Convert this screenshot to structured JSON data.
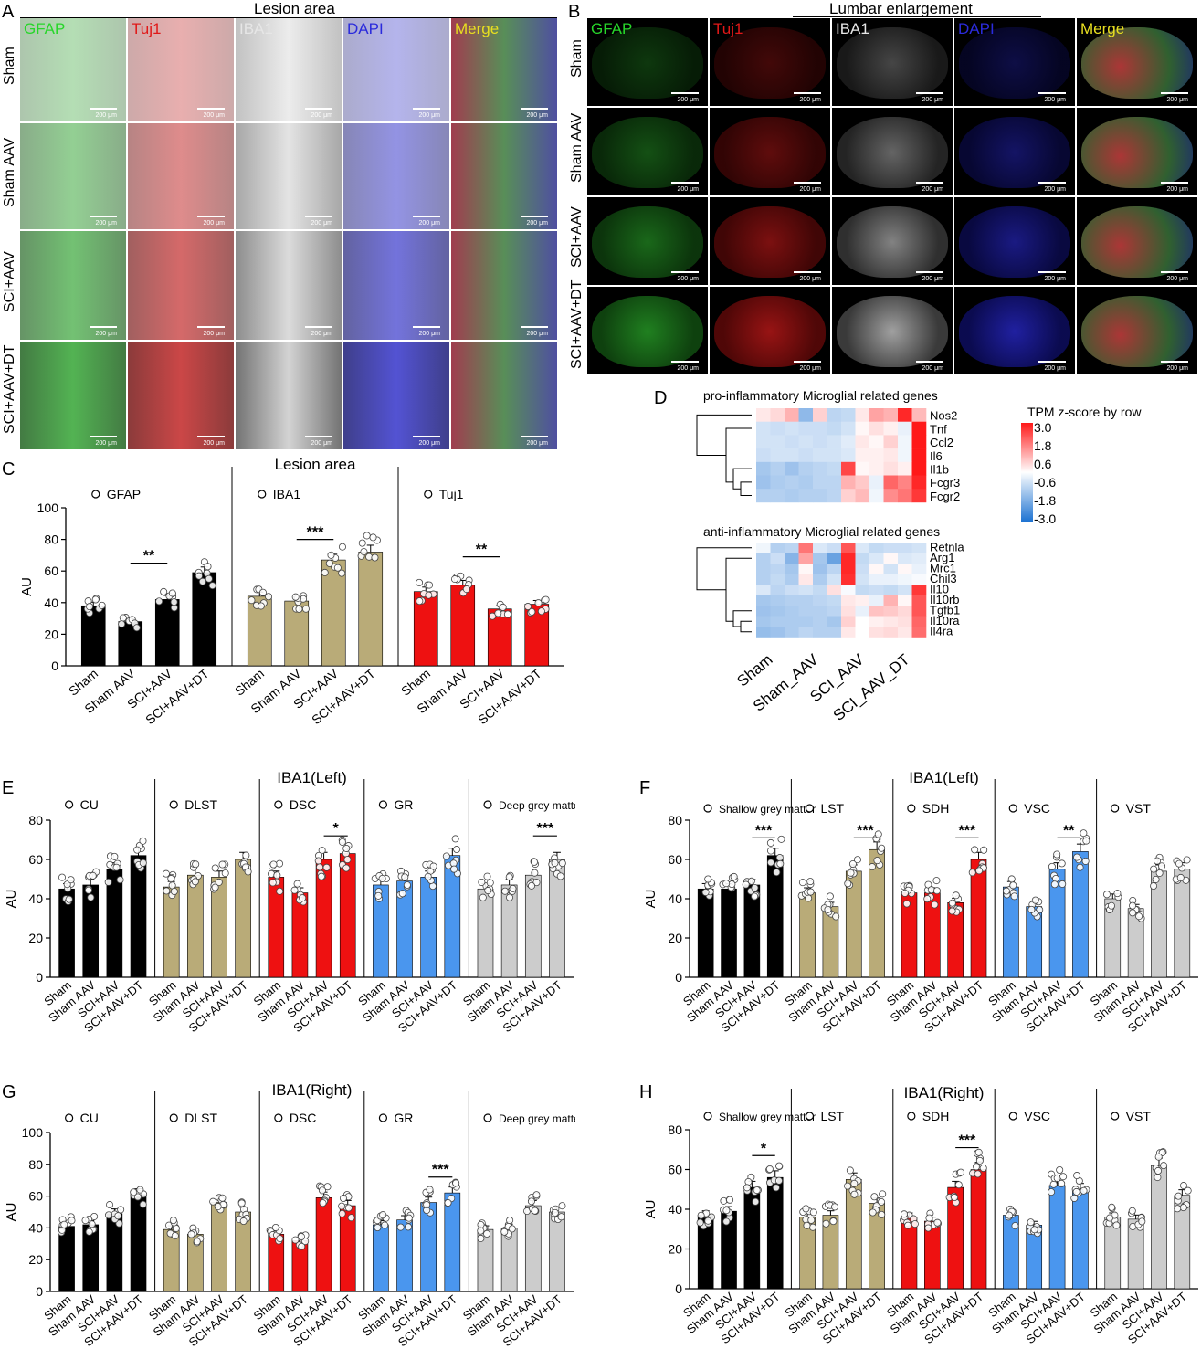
{
  "panel_letters": [
    "A",
    "B",
    "C",
    "D",
    "E",
    "F",
    "G",
    "H"
  ],
  "panelA": {
    "title": "Lesion area",
    "channels": [
      "GFAP",
      "Tuj1",
      "IBA1",
      "DAPI",
      "Merge"
    ],
    "channel_colors": [
      "#27d62a",
      "#e01818",
      "#e6e6e6",
      "#2b2bdc",
      "#e8df20"
    ],
    "rows": [
      "Sham",
      "Sham AAV",
      "SCI+AAV",
      "SCI+AAV+DT"
    ],
    "scalebar": "200 μm"
  },
  "panelB": {
    "title": "Lumbar enlargement",
    "channels": [
      "GFAP",
      "Tuj1",
      "IBA1",
      "DAPI",
      "Merge"
    ],
    "rows": [
      "Sham",
      "Sham AAV",
      "SCI+AAV",
      "SCI+AAV+DT"
    ],
    "scalebar": "200 μm"
  },
  "panelD": {
    "pro_title": "pro-inflammatory  Microglial related genes",
    "anti_title": "anti-inflammatory  Microglial related genes",
    "pro_genes": [
      "Nos2",
      "Tnf",
      "Ccl2",
      "Il6",
      "Il1b",
      "Fcgr3",
      "Fcgr2"
    ],
    "anti_genes": [
      "Retnla",
      "Arg1",
      "Mrc1",
      "Chil3",
      "Il10",
      "Il10rb",
      "Tgfb1",
      "Il10ra",
      "Il4ra"
    ],
    "groups": [
      "Sham",
      "Sham_AAV",
      "SCI_AAV",
      "SCI_AAV_DT"
    ],
    "legend_title": "TPM z-score by row",
    "legend_ticks": [
      "3.0",
      "1.8",
      "0.6",
      "-0.6",
      "-1.8",
      "-3.0"
    ],
    "pro_matrix": [
      [
        0.3,
        0.5,
        1.0,
        -1.5,
        0.6,
        -0.9,
        -0.8,
        0.3,
        1.2,
        1.0,
        2.8,
        0.9
      ],
      [
        -0.6,
        -0.7,
        -0.6,
        -0.7,
        -0.7,
        -0.8,
        -0.6,
        0.1,
        0.4,
        0.2,
        -0.3,
        3.0
      ],
      [
        -0.6,
        -0.6,
        -0.7,
        -0.6,
        -0.7,
        -0.6,
        -0.4,
        0.3,
        0.1,
        0.6,
        -0.2,
        3.0
      ],
      [
        -0.7,
        -0.6,
        -0.6,
        -0.7,
        -0.6,
        -0.6,
        -0.5,
        0.2,
        0.2,
        0.3,
        -0.2,
        3.0
      ],
      [
        -1.2,
        -1.0,
        -1.3,
        -1.0,
        -0.9,
        -0.8,
        2.4,
        0.1,
        0.2,
        0.4,
        0.2,
        3.0
      ],
      [
        -1.3,
        -1.1,
        -1.0,
        -1.1,
        -0.9,
        -0.9,
        1.0,
        0.7,
        -0.3,
        2.0,
        1.6,
        2.8
      ],
      [
        -1.0,
        -1.0,
        -1.1,
        -1.0,
        -1.0,
        -0.9,
        0.6,
        0.9,
        -0.2,
        1.5,
        1.8,
        2.6
      ]
    ],
    "anti_matrix": [
      [
        -0.2,
        -1.0,
        -0.9,
        1.8,
        -0.5,
        -0.7,
        2.2,
        -0.5,
        -0.8,
        -0.7,
        -0.7,
        -0.6
      ],
      [
        -1.0,
        -0.7,
        -1.6,
        1.2,
        -1.2,
        -2.0,
        2.8,
        -0.8,
        -0.5,
        0.1,
        -0.5,
        -0.4
      ],
      [
        -1.0,
        -0.9,
        -1.2,
        0.1,
        -1.3,
        -0.9,
        2.8,
        -0.7,
        0.1,
        -0.6,
        0.1,
        -0.3
      ],
      [
        -1.0,
        -0.8,
        -1.1,
        0.3,
        -1.1,
        -0.6,
        2.7,
        -0.6,
        -0.3,
        -0.3,
        -0.2,
        -0.1
      ],
      [
        -0.5,
        -0.9,
        -0.7,
        -0.6,
        -0.8,
        0.4,
        -0.1,
        -0.8,
        -0.7,
        -0.8,
        -0.6,
        2.6
      ],
      [
        -1.2,
        -1.1,
        -1.0,
        -1.0,
        -0.9,
        -0.8,
        0.3,
        0.2,
        -0.3,
        1.0,
        0.1,
        2.2
      ],
      [
        -1.3,
        -1.2,
        -1.1,
        -1.0,
        -1.0,
        -0.9,
        0.4,
        -0.3,
        0.8,
        0.7,
        0.5,
        2.2
      ],
      [
        -1.2,
        -1.1,
        -1.1,
        -1.1,
        -1.0,
        -1.2,
        0.6,
        0.0,
        0.2,
        0.3,
        0.4,
        2.0
      ],
      [
        -1.4,
        -1.3,
        -1.1,
        -0.9,
        -1.0,
        -1.0,
        0.3,
        0.0,
        0.4,
        0.5,
        0.3,
        1.9
      ]
    ]
  },
  "chart_data": [
    {
      "id": "C",
      "type": "bar",
      "title": "Lesion area",
      "ylabel": "AU",
      "ylim": [
        0,
        100
      ],
      "yticks": [
        0,
        20,
        40,
        60,
        80,
        100
      ],
      "categories": [
        "Sham",
        "Sham AAV",
        "SCI+AAV",
        "SCI+AAV+DT"
      ],
      "series": [
        {
          "name": "GFAP",
          "values": [
            38,
            28,
            42,
            59
          ],
          "color": "#000000",
          "sig": {
            "label": "**",
            "from": 1,
            "to": 2,
            "y": 65
          }
        },
        {
          "name": "IBA1",
          "values": [
            44,
            41,
            67,
            72
          ],
          "color": "#b9ab78",
          "sig": {
            "label": "***",
            "from": 1,
            "to": 2,
            "y": 80
          }
        },
        {
          "name": "Tuj1",
          "values": [
            47,
            51,
            36,
            39
          ],
          "color": "#ee1111",
          "sig": {
            "label": "**",
            "from": 1,
            "to": 2,
            "y": 69
          }
        }
      ]
    },
    {
      "id": "E",
      "type": "bar",
      "title": "IBA1(Left)",
      "ylabel": "AU",
      "ylim": [
        0,
        80
      ],
      "yticks": [
        0,
        20,
        40,
        60,
        80
      ],
      "categories": [
        "Sham",
        "Sham AAV",
        "SCI+AAV",
        "SCI+AAV+DT"
      ],
      "series": [
        {
          "name": "CU",
          "values": [
            45,
            47,
            55,
            62
          ],
          "color": "#000000"
        },
        {
          "name": "DLST",
          "values": [
            46,
            52,
            51,
            60
          ],
          "color": "#b9ab78"
        },
        {
          "name": "DSC",
          "values": [
            51,
            43,
            60,
            63
          ],
          "color": "#ee1111",
          "sig": {
            "label": "*",
            "from": 2,
            "to": 3,
            "y": 72
          }
        },
        {
          "name": "GR",
          "values": [
            47,
            49,
            51,
            62
          ],
          "color": "#4a96ee"
        },
        {
          "name": "Deep grey matter",
          "values": [
            45,
            47,
            52,
            60
          ],
          "color": "#cccccc",
          "sig": {
            "label": "***",
            "from": 2,
            "to": 3,
            "y": 72
          }
        }
      ]
    },
    {
      "id": "F",
      "type": "bar",
      "title": "IBA1(Left)",
      "ylabel": "AU",
      "ylim": [
        0,
        80
      ],
      "yticks": [
        0,
        20,
        40,
        60,
        80
      ],
      "categories": [
        "Sham",
        "Sham AAV",
        "SCI+AAV",
        "SCI+AAV+DT"
      ],
      "series": [
        {
          "name": "Shallow grey matter",
          "values": [
            45,
            45,
            47,
            62
          ],
          "color": "#000000",
          "sig": {
            "label": "***",
            "from": 2,
            "to": 3,
            "y": 71
          }
        },
        {
          "name": "LST",
          "values": [
            43,
            36,
            54,
            65
          ],
          "color": "#b9ab78",
          "sig": {
            "label": "***",
            "from": 2,
            "to": 3,
            "y": 71
          }
        },
        {
          "name": "SDH",
          "values": [
            43,
            43,
            38,
            60
          ],
          "color": "#ee1111",
          "sig": {
            "label": "***",
            "from": 2,
            "to": 3,
            "y": 71
          }
        },
        {
          "name": "VSC",
          "values": [
            46,
            36,
            55,
            64
          ],
          "color": "#4a96ee",
          "sig": {
            "label": "**",
            "from": 2,
            "to": 3,
            "y": 71
          }
        },
        {
          "name": "VST",
          "values": [
            40,
            35,
            54,
            55
          ],
          "color": "#cccccc"
        }
      ]
    },
    {
      "id": "G",
      "type": "bar",
      "title": "IBA1(Right)",
      "ylabel": "AU",
      "ylim": [
        0,
        100
      ],
      "yticks": [
        0,
        20,
        40,
        60,
        80,
        100
      ],
      "categories": [
        "Sham",
        "Sham AAV",
        "SCI+AAV",
        "SCI+AAV+DT"
      ],
      "series": [
        {
          "name": "CU",
          "values": [
            41,
            42,
            49,
            61
          ],
          "color": "#000000"
        },
        {
          "name": "DLST",
          "values": [
            39,
            36,
            56,
            50
          ],
          "color": "#b9ab78"
        },
        {
          "name": "DSC",
          "values": [
            36,
            32,
            59,
            54
          ],
          "color": "#ee1111"
        },
        {
          "name": "GR",
          "values": [
            42,
            45,
            56,
            62
          ],
          "color": "#4a96ee",
          "sig": {
            "label": "***",
            "from": 2,
            "to": 3,
            "y": 72
          }
        },
        {
          "name": "Deep grey matter",
          "values": [
            39,
            40,
            54,
            50
          ],
          "color": "#cccccc"
        }
      ]
    },
    {
      "id": "H",
      "type": "bar",
      "title": "IBA1(Right)",
      "ylabel": "AU",
      "ylim": [
        0,
        80
      ],
      "yticks": [
        0,
        20,
        40,
        60,
        80
      ],
      "categories": [
        "Sham",
        "Sham AAV",
        "SCI+AAV",
        "SCI+AAV+DT"
      ],
      "series": [
        {
          "name": "Shallow grey matter",
          "values": [
            37,
            39,
            51,
            56
          ],
          "color": "#000000",
          "sig": {
            "label": "*",
            "from": 2,
            "to": 3,
            "y": 67
          }
        },
        {
          "name": "LST",
          "values": [
            36,
            37,
            55,
            43
          ],
          "color": "#b9ab78"
        },
        {
          "name": "SDH",
          "values": [
            36,
            34,
            51,
            60
          ],
          "color": "#ee1111",
          "sig": {
            "label": "***",
            "from": 2,
            "to": 3,
            "y": 71
          }
        },
        {
          "name": "VSC",
          "values": [
            37,
            32,
            52,
            50
          ],
          "color": "#4a96ee"
        },
        {
          "name": "VST",
          "values": [
            36,
            35,
            62,
            47
          ],
          "color": "#cccccc"
        }
      ]
    }
  ]
}
